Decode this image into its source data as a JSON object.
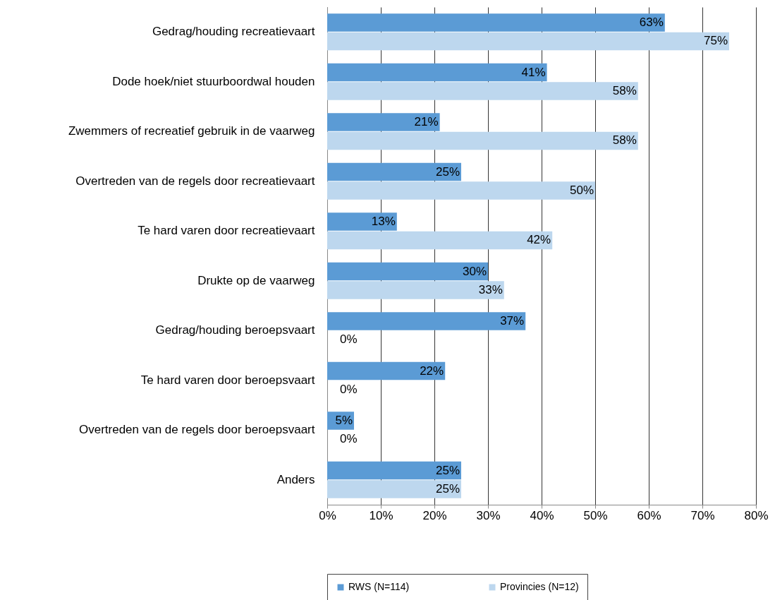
{
  "chart_data": {
    "type": "bar",
    "orientation": "horizontal",
    "categories": [
      "Gedrag/houding recreatievaart",
      "Dode hoek/niet stuurboordwal houden",
      "Zwemmers of recreatief gebruik in de vaarweg",
      "Overtreden van de regels door recreatievaart",
      "Te hard varen door recreatievaart",
      "Drukte op de vaarweg",
      "Gedrag/houding beroepsvaart",
      "Te hard varen door beroepsvaart",
      "Overtreden van de regels door beroepsvaart",
      "Anders"
    ],
    "series": [
      {
        "name": "RWS (N=114)",
        "color": "#5b9bd5",
        "values": [
          63,
          41,
          21,
          25,
          13,
          30,
          37,
          22,
          5,
          25
        ],
        "value_labels": [
          "63%",
          "41%",
          "21%",
          "25%",
          "13%",
          "30%",
          "37%",
          "22%",
          "5%",
          "25%"
        ]
      },
      {
        "name": "Provincies (N=12)",
        "color": "#bdd7ee",
        "values": [
          75,
          58,
          58,
          50,
          42,
          33,
          0,
          0,
          0,
          25
        ],
        "value_labels": [
          "75%",
          "58%",
          "58%",
          "50%",
          "42%",
          "33%",
          "0%",
          "0%",
          "0%",
          "25%"
        ]
      }
    ],
    "xlim": [
      0,
      80
    ],
    "xticks": [
      {
        "value": 0,
        "label": "0%"
      },
      {
        "value": 10,
        "label": "10%"
      },
      {
        "value": 20,
        "label": "20%"
      },
      {
        "value": 30,
        "label": "30%"
      },
      {
        "value": 40,
        "label": "40%"
      },
      {
        "value": 50,
        "label": "50%"
      },
      {
        "value": 60,
        "label": "60%"
      },
      {
        "value": 70,
        "label": "70%"
      },
      {
        "value": 80,
        "label": "80%"
      }
    ],
    "grid": "x",
    "legend": "bottom"
  }
}
